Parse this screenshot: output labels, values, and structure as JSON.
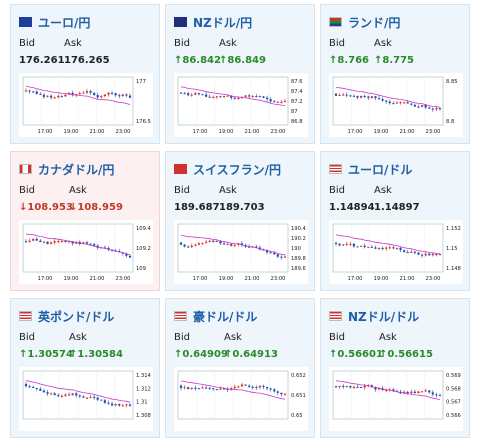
{
  "cards": [
    {
      "title": "ユーロ/円",
      "flag": "eu",
      "bid_label": "Bid",
      "ask_label": "Ask",
      "bid": "176.261",
      "ask": "176.265",
      "dir": "none",
      "ticks": [
        "177",
        "176.5"
      ],
      "times": [
        "17:00",
        "19:00",
        "21:00",
        "23:00"
      ]
    },
    {
      "title": "NZドル/円",
      "flag": "nz",
      "bid_label": "Bid",
      "ask_label": "Ask",
      "bid": "↑86.842",
      "ask": "↑86.849",
      "dir": "up",
      "ticks": [
        "87.6",
        "87.4",
        "87.2",
        "87",
        "86.8"
      ],
      "times": [
        "17:00",
        "19:00",
        "21:00",
        "23:00"
      ]
    },
    {
      "title": "ランド/円",
      "flag": "za",
      "bid_label": "Bid",
      "ask_label": "Ask",
      "bid": "↑8.766",
      "ask": "↑8.775",
      "dir": "up",
      "ticks": [
        "8.85",
        "8.8"
      ],
      "times": [
        "17:00",
        "19:00",
        "21:00",
        "23:00"
      ]
    },
    {
      "title": "カナダドル/円",
      "flag": "ca",
      "bid_label": "Bid",
      "ask_label": "Ask",
      "bid": "↓108.953",
      "ask": "↓108.959",
      "dir": "down",
      "ticks": [
        "109.4",
        "109.2",
        "109"
      ],
      "times": [
        "17:00",
        "19:00",
        "21:00",
        "23:00"
      ]
    },
    {
      "title": "スイスフラン/円",
      "flag": "ch",
      "bid_label": "Bid",
      "ask_label": "Ask",
      "bid": "189.687",
      "ask": "189.703",
      "dir": "none",
      "ticks": [
        "190.4",
        "190.2",
        "190",
        "189.8",
        "189.6"
      ],
      "times": [
        "17:00",
        "19:00",
        "21:00",
        "23:00"
      ]
    },
    {
      "title": "ユーロ/ドル",
      "flag": "us",
      "bid_label": "Bid",
      "ask_label": "Ask",
      "bid": "1.14894",
      "ask": "1.14897",
      "dir": "none",
      "ticks": [
        "1.152",
        "1.15",
        "1.148"
      ],
      "times": [
        "17:00",
        "19:00",
        "21:00",
        "23:00"
      ]
    },
    {
      "title": "英ポンド/ドル",
      "flag": "us",
      "bid_label": "Bid",
      "ask_label": "Ask",
      "bid": "↑1.30574",
      "ask": "↑1.30584",
      "dir": "up",
      "ticks": [
        "1.314",
        "1.312",
        "1.31",
        "1.308"
      ],
      "times": []
    },
    {
      "title": "豪ドル/ドル",
      "flag": "us",
      "bid_label": "Bid",
      "ask_label": "Ask",
      "bid": "↑0.64909",
      "ask": "↑0.64913",
      "dir": "up",
      "ticks": [
        "0.652",
        "0.651",
        "0.65"
      ],
      "times": []
    },
    {
      "title": "NZドル/ドル",
      "flag": "us",
      "bid_label": "Bid",
      "ask_label": "Ask",
      "bid": "↑0.56601",
      "ask": "↑0.56615",
      "dir": "up",
      "ticks": [
        "0.569",
        "0.568",
        "0.567",
        "0.566"
      ],
      "times": []
    }
  ],
  "colors": {
    "up": "#2a8a2a",
    "down": "#c0392b",
    "candle_up": "#d93025",
    "candle_down": "#1f4fb0",
    "ma": "#cc33cc"
  },
  "icons": {
    "eu": "eu-flag-icon",
    "nz": "nz-flag-icon",
    "za": "za-flag-icon",
    "ca": "ca-flag-icon",
    "ch": "ch-flag-icon",
    "us": "us-flag-icon"
  }
}
